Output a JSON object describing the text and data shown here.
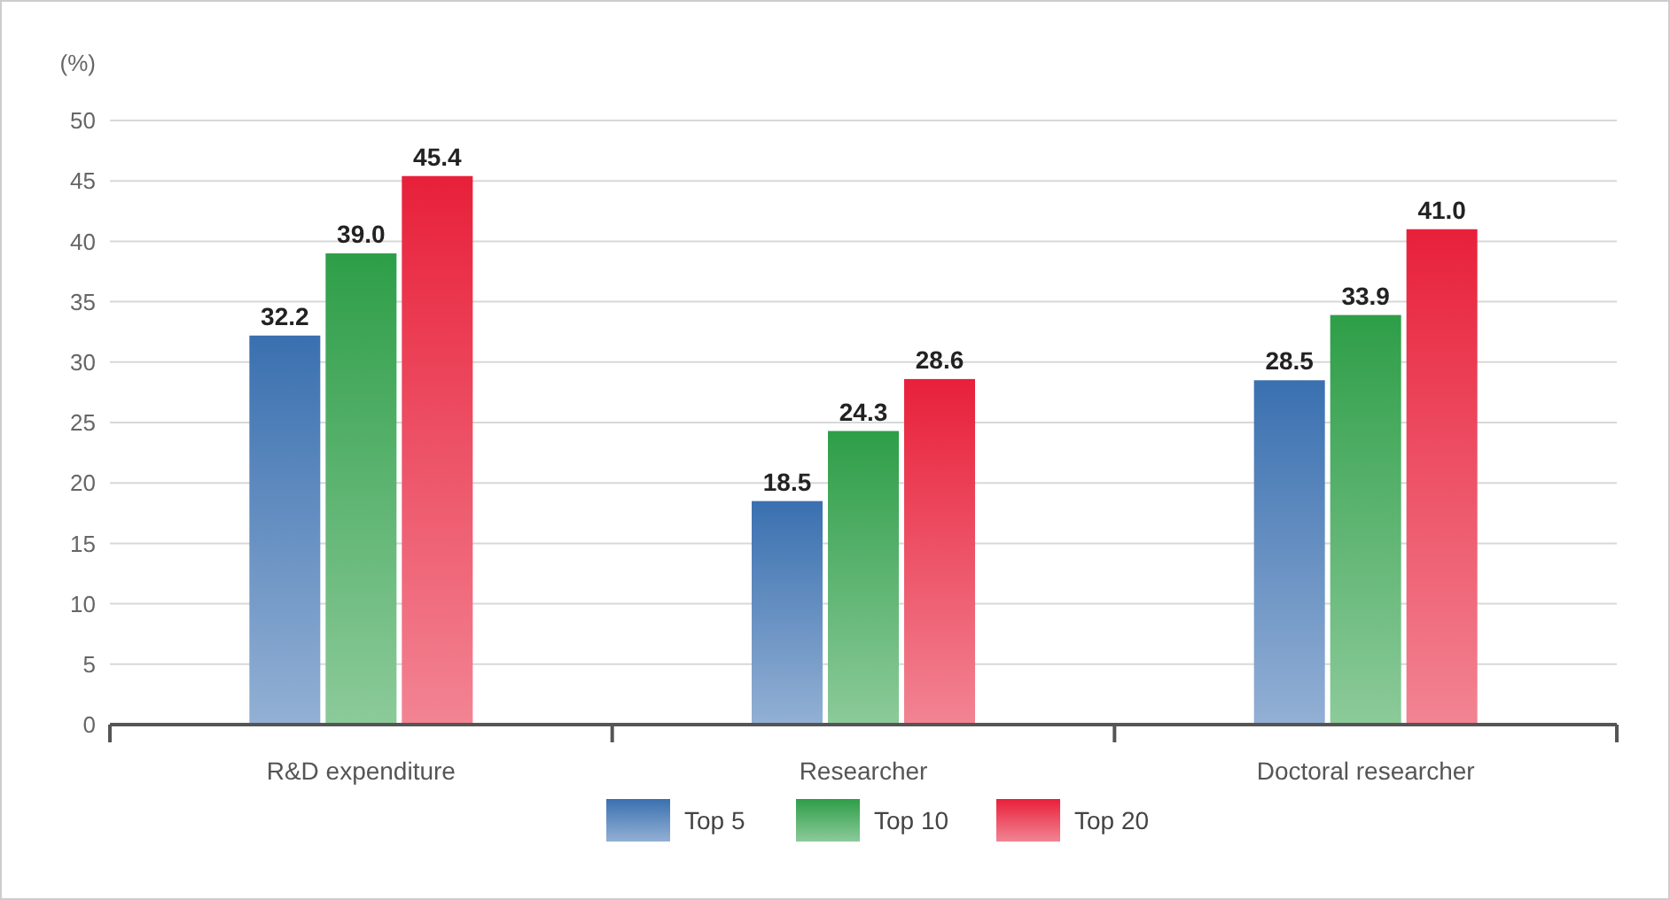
{
  "chart_data": {
    "type": "bar",
    "ylabel": "(%)",
    "categories": [
      "R&D expenditure",
      "Researcher",
      "Doctoral researcher"
    ],
    "series": [
      {
        "name": "Top 5",
        "color": "#3a70b0",
        "values": [
          32.2,
          18.5,
          28.5
        ],
        "value_labels": [
          "32.2",
          "18.5",
          "28.5"
        ]
      },
      {
        "name": "Top 10",
        "color": "#2e9e48",
        "values": [
          39.0,
          24.3,
          33.9
        ],
        "value_labels": [
          "39.0",
          "24.3",
          "33.9"
        ]
      },
      {
        "name": "Top 20",
        "color": "#e8203a",
        "values": [
          45.4,
          28.6,
          41.0
        ],
        "value_labels": [
          "45.4",
          "28.6",
          "41.0"
        ]
      }
    ],
    "ylim": [
      0,
      50
    ],
    "yticks": [
      0,
      5,
      10,
      15,
      20,
      25,
      30,
      35,
      40,
      45,
      50
    ],
    "grid": "y",
    "legend": "bottom"
  }
}
